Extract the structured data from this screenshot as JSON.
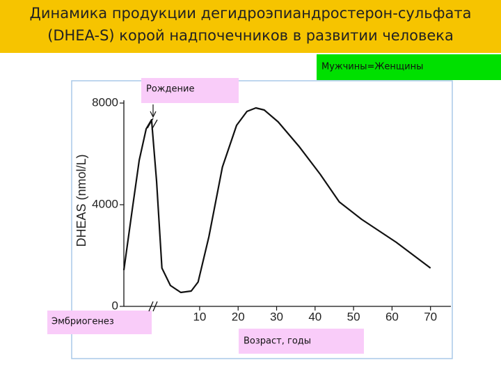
{
  "chart_data": {
    "type": "line",
    "title_lines": [
      "Динамика продукции дегидроэпиандростерон-сульфата",
      "(DHEA-S) корой надпочечников в развитии человека"
    ],
    "y_label": "DHEAS (nmol/L)",
    "x_label": "Возраст, годы",
    "legend_note": "Мужчины=Женщины",
    "annotations": [
      "Рождение",
      "Эмбриогенез"
    ],
    "x": [
      -9.7,
      -7.5,
      -5.7,
      -3.9,
      -2.5,
      -1.2,
      0.2,
      2.4,
      5.1,
      7.8,
      9.6,
      12.4,
      15.9,
      19.6,
      22.3,
      24.6,
      26.8,
      30.4,
      35.8,
      41.3,
      46.3,
      52.1,
      61.1,
      70
    ],
    "series": [
      {
        "color": "#111111",
        "values": [
          1425,
          3836,
          5753,
          6986,
          7342,
          4932,
          1507,
          822,
          548,
          603,
          959,
          2740,
          5480,
          7123,
          7671,
          7808,
          7726,
          7260,
          6300,
          5206,
          4110,
          3425,
          2520,
          1507
        ]
      }
    ],
    "xlim": [
      -9.7,
      75.3
    ],
    "xticks": [
      10,
      20,
      30,
      40,
      50,
      60,
      70
    ],
    "ylim": [
      0,
      8000
    ],
    "yticks": [
      0,
      4000,
      8000
    ],
    "y_tick_zero_extra": false
  }
}
